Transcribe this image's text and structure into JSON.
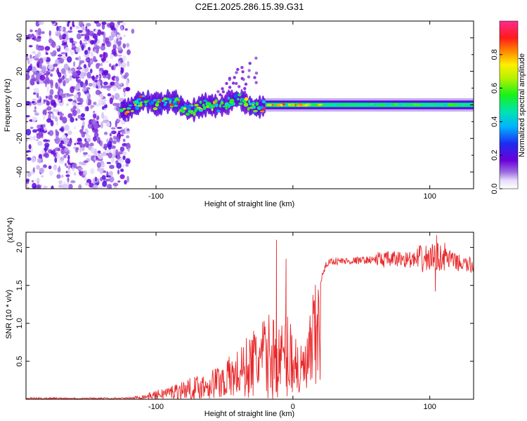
{
  "chart_data": [
    {
      "type": "heatmap",
      "title": "C2E1.2025.286.15.39.G31",
      "xlabel": "Height of straight line (km)",
      "ylabel": "Frequency (Hz)",
      "xlim": [
        -195,
        132
      ],
      "ylim": [
        -50,
        50
      ],
      "xticks": [
        -100,
        0,
        100
      ],
      "xtick_labels": [
        "-100",
        "",
        "100"
      ],
      "yticks": [
        -40,
        -20,
        0,
        20,
        40
      ],
      "ytick_labels": [
        "-40",
        "-20",
        "0",
        "20",
        "40"
      ],
      "colorbar": {
        "label": "Normalized spectral amplitude",
        "range": [
          0.0,
          1.0
        ],
        "ticks": [
          0.0,
          0.2,
          0.4,
          0.6,
          0.8
        ],
        "tick_labels": [
          "0.0",
          "0.2",
          "0.4",
          "0.6",
          "0.8"
        ]
      },
      "regions": [
        {
          "name": "diffuse noise",
          "x_range": [
            -195,
            -120
          ],
          "y_range": [
            -50,
            50
          ],
          "amplitude": 0.1
        },
        {
          "name": "turbulent band",
          "x_range": [
            -125,
            -20
          ],
          "center_hz": 0,
          "halfwidth_hz": 6,
          "amplitude": 0.5
        },
        {
          "name": "spray above band",
          "x_range": [
            -55,
            -25
          ],
          "y_range": [
            5,
            33
          ],
          "amplitude": 0.15
        },
        {
          "name": "steady band",
          "x_range": [
            -20,
            132
          ],
          "center_hz": 0,
          "halfwidth_hz": 2,
          "amplitude": 0.45
        }
      ]
    },
    {
      "type": "line",
      "xlabel": "Height of straight line (km)",
      "ylabel": "SNR (10 * v/v)",
      "y_multiplier": "(x10^4)",
      "xlim": [
        -195,
        132
      ],
      "ylim": [
        0,
        2.2
      ],
      "xticks": [
        -100,
        0,
        100
      ],
      "xtick_labels": [
        "-100",
        "0",
        "100"
      ],
      "yticks": [
        0.5,
        1.0,
        1.5,
        2.0
      ],
      "ytick_labels": [
        "0.5",
        "1.0",
        "1.5",
        "2.0"
      ],
      "series": [
        {
          "name": "SNR",
          "color": "#e8282a",
          "x": [
            -195,
            -150,
            -120,
            -110,
            -100,
            -90,
            -80,
            -70,
            -60,
            -50,
            -40,
            -30,
            -25,
            -20,
            -15,
            -10,
            -5,
            0,
            5,
            10,
            15,
            20,
            25,
            30,
            40,
            50,
            60,
            70,
            80,
            90,
            100,
            110,
            120,
            132
          ],
          "y": [
            0.02,
            0.02,
            0.02,
            0.05,
            0.1,
            0.16,
            0.22,
            0.27,
            0.35,
            0.45,
            0.58,
            0.8,
            0.9,
            0.95,
            1.0,
            0.85,
            1.0,
            1.0,
            0.6,
            0.7,
            1.25,
            1.55,
            1.8,
            1.82,
            1.82,
            1.83,
            1.84,
            1.84,
            1.85,
            1.83,
            1.86,
            1.88,
            1.8,
            1.75
          ],
          "spikes": [
            [
              -12,
              2.1
            ],
            [
              -5,
              1.85
            ],
            [
              10,
              0.15
            ],
            [
              8,
              0.62
            ],
            [
              105,
              2.16
            ],
            [
              104,
              1.42
            ]
          ]
        }
      ]
    }
  ]
}
